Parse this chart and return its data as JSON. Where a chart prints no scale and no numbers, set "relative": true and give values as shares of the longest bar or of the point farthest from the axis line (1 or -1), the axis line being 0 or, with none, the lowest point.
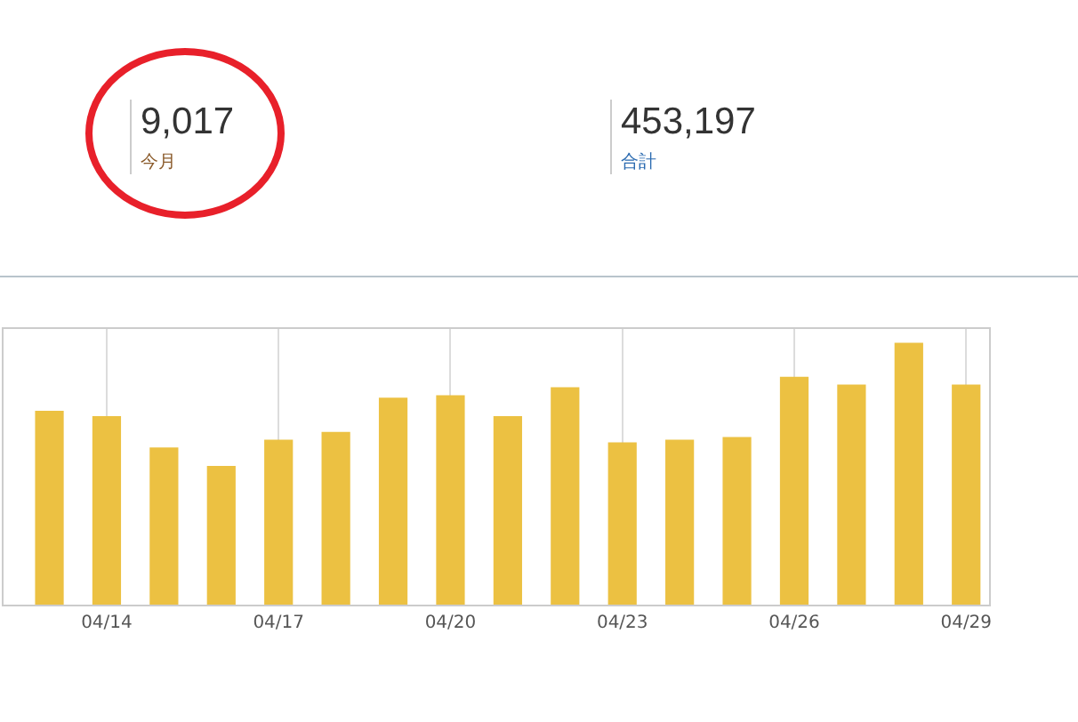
{
  "chart_data": {
    "type": "bar",
    "relative": true,
    "grid": "x",
    "color": "#ecc142",
    "categories": [
      null,
      "04/14",
      null,
      null,
      "04/17",
      null,
      null,
      "04/20",
      null,
      null,
      "04/23",
      null,
      null,
      "04/26",
      null,
      null,
      "04/29"
    ],
    "values": [
      0.74,
      0.72,
      0.6,
      0.53,
      0.63,
      0.66,
      0.79,
      0.8,
      0.72,
      0.83,
      0.62,
      0.63,
      0.64,
      0.87,
      0.84,
      1,
      0.84
    ],
    "annotations": [
      "9,017",
      "今月",
      "453,197",
      "合計"
    ]
  }
}
